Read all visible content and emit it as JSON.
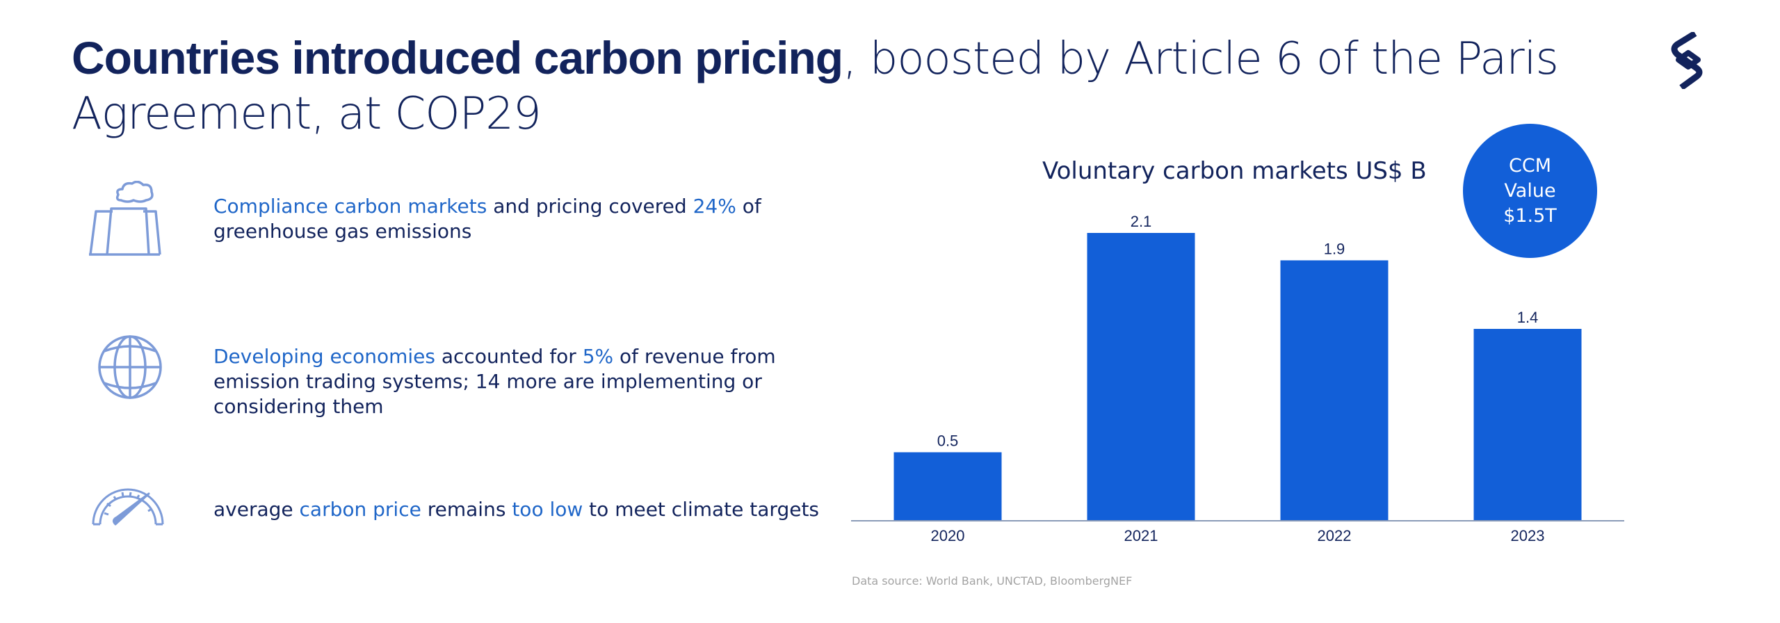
{
  "header": {
    "title_bold": "Countries introduced carbon pricing",
    "title_rest": ", boosted by Article 6 of the Paris Agreement, at COP29",
    "logo": "brand-logo"
  },
  "items": [
    {
      "icon": "power-plant-icon",
      "parts": [
        {
          "text": "Compliance carbon markets",
          "highlight": true
        },
        {
          "text": " and pricing covered ",
          "highlight": false
        },
        {
          "text": "24%",
          "highlight": true
        },
        {
          "text": " of greenhouse gas emissions",
          "highlight": false
        }
      ]
    },
    {
      "icon": "globe-icon",
      "parts": [
        {
          "text": "Developing economies",
          "highlight": true
        },
        {
          "text": " accounted for ",
          "highlight": false
        },
        {
          "text": "5%",
          "highlight": true
        },
        {
          "text": " of revenue from emission trading systems; 14 more are implementing or considering them",
          "highlight": false
        }
      ]
    },
    {
      "icon": "gauge-icon",
      "parts": [
        {
          "text": "average ",
          "highlight": false
        },
        {
          "text": "carbon price",
          "highlight": true
        },
        {
          "text": " remains ",
          "highlight": false
        },
        {
          "text": "too low",
          "highlight": true
        },
        {
          "text": " to meet climate targets",
          "highlight": false
        }
      ]
    }
  ],
  "ccm_badge": {
    "line1": "CCM",
    "line2": "Value",
    "line3": "$1.5T"
  },
  "source": "Data source: World Bank, UNCTAD, BloombergNEF",
  "colors": {
    "primary_dark": "#12235c",
    "highlight": "#1f66c8",
    "bar": "#125fd8",
    "axis": "#8a9bb8",
    "icon": "#7d9bd8"
  },
  "chart_data": {
    "type": "bar",
    "title": "Voluntary carbon markets US$ B",
    "categories": [
      "2020",
      "2021",
      "2022",
      "2023"
    ],
    "values": [
      0.5,
      2.1,
      1.9,
      1.4
    ],
    "value_labels": [
      "0.5",
      "2.1",
      "1.9",
      "1.4"
    ],
    "xlabel": "",
    "ylabel": "",
    "ylim": [
      0,
      2.1
    ],
    "grid": false,
    "legend": "none"
  }
}
